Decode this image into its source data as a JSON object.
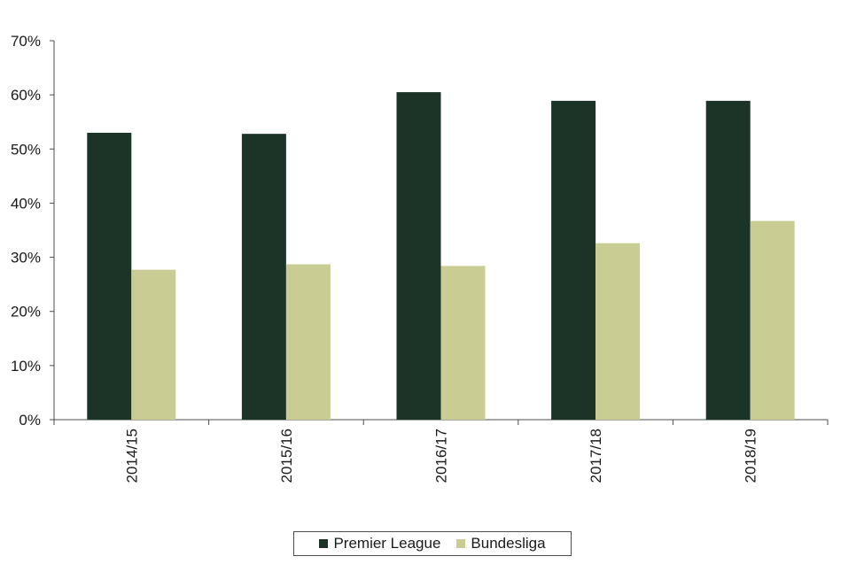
{
  "chart_data": {
    "type": "bar",
    "categories": [
      "2014/15",
      "2015/16",
      "2016/17",
      "2017/18",
      "2018/19"
    ],
    "series": [
      {
        "name": "Premier League",
        "values": [
          53,
          52.8,
          60.5,
          58.9,
          58.9
        ],
        "color": "#1c3328"
      },
      {
        "name": "Bundesliga",
        "values": [
          27.7,
          28.7,
          28.4,
          32.6,
          36.7
        ],
        "color": "#c9cd94"
      }
    ],
    "ylim": [
      0,
      70
    ],
    "yticks": [
      "0%",
      "10%",
      "20%",
      "30%",
      "40%",
      "50%",
      "60%",
      "70%"
    ],
    "title": "",
    "xlabel": "",
    "ylabel": "",
    "grid": false,
    "legend_position": "bottom"
  }
}
